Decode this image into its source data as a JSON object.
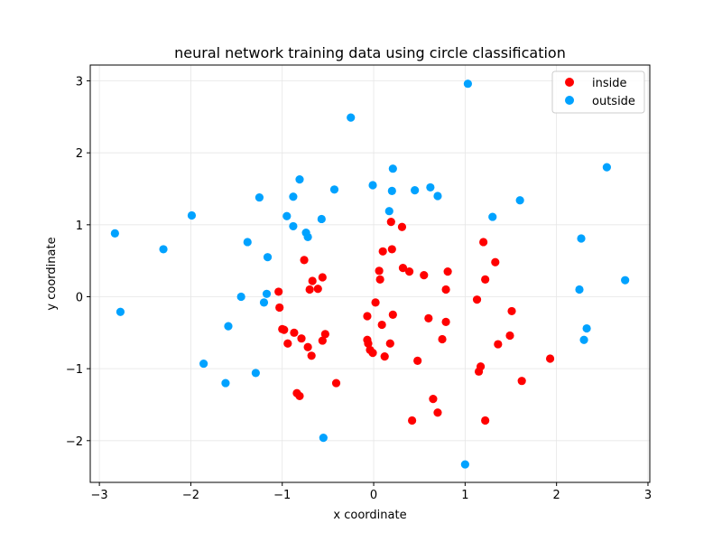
{
  "chart_data": {
    "type": "scatter",
    "title": "neural network training data using circle classification",
    "xlabel": "x coordinate",
    "ylabel": "y coordinate",
    "xlim": [
      -3.1,
      3.02
    ],
    "ylim": [
      -2.58,
      3.22
    ],
    "xticks": [
      -3,
      -2,
      -1,
      0,
      1,
      2,
      3
    ],
    "yticks": [
      -2,
      -1,
      0,
      1,
      2,
      3
    ],
    "grid": true,
    "legend_position": "top-right",
    "series": [
      {
        "name": "inside",
        "color": "#ff0000",
        "points": [
          [
            -1.04,
            0.07
          ],
          [
            -1.03,
            -0.15
          ],
          [
            -1.0,
            -0.45
          ],
          [
            -0.98,
            -0.46
          ],
          [
            -0.94,
            -0.65
          ],
          [
            -0.87,
            -0.5
          ],
          [
            -0.84,
            -1.34
          ],
          [
            -0.81,
            -1.38
          ],
          [
            -0.79,
            -0.58
          ],
          [
            -0.76,
            0.51
          ],
          [
            -0.72,
            -0.7
          ],
          [
            -0.7,
            0.1
          ],
          [
            -0.68,
            -0.82
          ],
          [
            -0.67,
            0.22
          ],
          [
            -0.61,
            0.11
          ],
          [
            -0.56,
            0.27
          ],
          [
            -0.56,
            -0.61
          ],
          [
            -0.53,
            -0.52
          ],
          [
            -0.41,
            -1.2
          ],
          [
            -0.07,
            -0.27
          ],
          [
            -0.07,
            -0.6
          ],
          [
            -0.06,
            -0.65
          ],
          [
            -0.04,
            -0.74
          ],
          [
            -0.01,
            -0.78
          ],
          [
            0.02,
            -0.08
          ],
          [
            0.06,
            0.36
          ],
          [
            0.07,
            0.24
          ],
          [
            0.09,
            -0.39
          ],
          [
            0.1,
            0.63
          ],
          [
            0.12,
            -0.83
          ],
          [
            0.18,
            -0.65
          ],
          [
            0.19,
            1.04
          ],
          [
            0.2,
            0.66
          ],
          [
            0.21,
            -0.25
          ],
          [
            0.31,
            0.97
          ],
          [
            0.32,
            0.4
          ],
          [
            0.39,
            0.35
          ],
          [
            0.42,
            -1.72
          ],
          [
            0.48,
            -0.89
          ],
          [
            0.55,
            0.3
          ],
          [
            0.6,
            -0.3
          ],
          [
            0.65,
            -1.42
          ],
          [
            0.7,
            -1.61
          ],
          [
            0.75,
            -0.59
          ],
          [
            0.79,
            0.1
          ],
          [
            0.79,
            -0.35
          ],
          [
            0.81,
            0.35
          ],
          [
            1.13,
            -0.04
          ],
          [
            1.15,
            -1.04
          ],
          [
            1.17,
            -0.97
          ],
          [
            1.2,
            0.76
          ],
          [
            1.22,
            0.24
          ],
          [
            1.22,
            -1.72
          ],
          [
            1.33,
            0.48
          ],
          [
            1.36,
            -0.66
          ],
          [
            1.49,
            -0.54
          ],
          [
            1.51,
            -0.2
          ],
          [
            1.62,
            -1.17
          ],
          [
            1.93,
            -0.86
          ]
        ]
      },
      {
        "name": "outside",
        "color": "#00a2ff",
        "points": [
          [
            -2.83,
            0.88
          ],
          [
            -2.77,
            -0.21
          ],
          [
            -2.3,
            0.66
          ],
          [
            -1.99,
            1.13
          ],
          [
            -1.86,
            -0.93
          ],
          [
            -1.62,
            -1.2
          ],
          [
            -1.59,
            -0.41
          ],
          [
            -1.45,
            0.0
          ],
          [
            -1.38,
            0.76
          ],
          [
            -1.29,
            -1.06
          ],
          [
            -1.25,
            1.38
          ],
          [
            -1.2,
            -0.08
          ],
          [
            -1.17,
            0.04
          ],
          [
            -1.16,
            0.55
          ],
          [
            -0.95,
            1.12
          ],
          [
            -0.88,
            1.39
          ],
          [
            -0.88,
            0.98
          ],
          [
            -0.81,
            1.63
          ],
          [
            -0.74,
            0.89
          ],
          [
            -0.72,
            0.83
          ],
          [
            -0.57,
            1.08
          ],
          [
            -0.55,
            -1.96
          ],
          [
            -0.43,
            1.49
          ],
          [
            -0.25,
            2.49
          ],
          [
            -0.01,
            1.55
          ],
          [
            0.17,
            1.19
          ],
          [
            0.2,
            1.47
          ],
          [
            0.21,
            1.78
          ],
          [
            0.45,
            1.48
          ],
          [
            0.62,
            1.52
          ],
          [
            0.7,
            1.4
          ],
          [
            1.0,
            -2.33
          ],
          [
            1.03,
            2.96
          ],
          [
            1.3,
            1.11
          ],
          [
            1.6,
            1.34
          ],
          [
            2.25,
            0.1
          ],
          [
            2.27,
            0.81
          ],
          [
            2.3,
            -0.6
          ],
          [
            2.33,
            -0.44
          ],
          [
            2.55,
            1.8
          ],
          [
            2.75,
            0.23
          ]
        ]
      }
    ]
  }
}
